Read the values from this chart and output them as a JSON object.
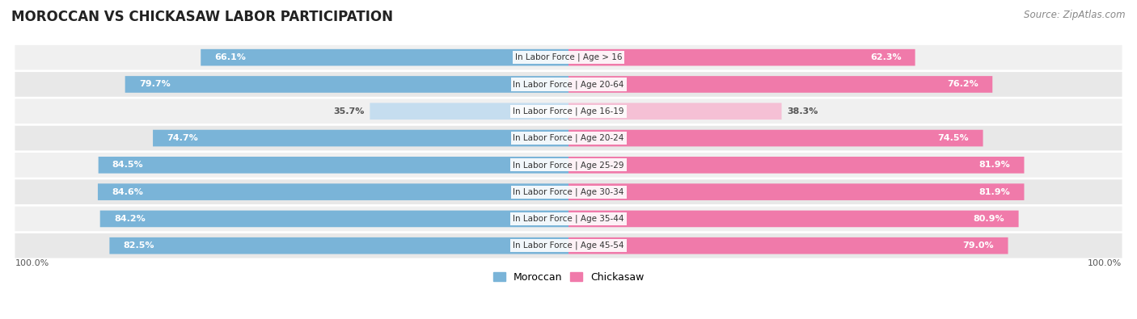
{
  "title": "MOROCCAN VS CHICKASAW LABOR PARTICIPATION",
  "source": "Source: ZipAtlas.com",
  "categories": [
    "In Labor Force | Age > 16",
    "In Labor Force | Age 20-64",
    "In Labor Force | Age 16-19",
    "In Labor Force | Age 20-24",
    "In Labor Force | Age 25-29",
    "In Labor Force | Age 30-34",
    "In Labor Force | Age 35-44",
    "In Labor Force | Age 45-54"
  ],
  "moroccan_values": [
    66.1,
    79.7,
    35.7,
    74.7,
    84.5,
    84.6,
    84.2,
    82.5
  ],
  "chickasaw_values": [
    62.3,
    76.2,
    38.3,
    74.5,
    81.9,
    81.9,
    80.9,
    79.0
  ],
  "moroccan_color": "#7ab4d8",
  "moroccan_light_color": "#c5ddef",
  "chickasaw_color": "#f07aaa",
  "chickasaw_light_color": "#f5c0d5",
  "row_bg_color_odd": "#f0f0f0",
  "row_bg_color_even": "#e8e8e8",
  "max_value": 100.0,
  "left_label": "100.0%",
  "right_label": "100.0%",
  "title_fontsize": 12,
  "source_fontsize": 8.5,
  "value_fontsize": 8,
  "category_fontsize": 7.5,
  "legend_fontsize": 9
}
